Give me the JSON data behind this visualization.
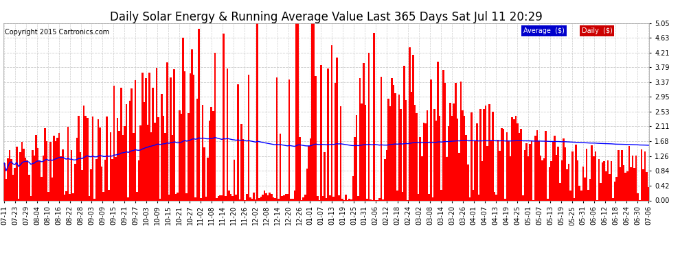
{
  "title": "Daily Solar Energy & Running Average Value Last 365 Days Sat Jul 11 20:29",
  "copyright": "Copyright 2015 Cartronics.com",
  "bar_color": "#ff0000",
  "avg_color": "#0000ff",
  "bg_color": "#ffffff",
  "grid_color": "#cccccc",
  "ylabel_right": [
    "0.00",
    "0.42",
    "0.84",
    "1.26",
    "1.68",
    "2.11",
    "2.53",
    "2.95",
    "3.37",
    "3.79",
    "4.21",
    "4.63",
    "5.05"
  ],
  "ylim": [
    0,
    5.05
  ],
  "legend_labels": [
    "Average  ($)",
    "Daily  ($)"
  ],
  "legend_colors_bg": [
    "#0000cc",
    "#cc0000"
  ],
  "x_labels": [
    "07-11",
    "07-23",
    "07-29",
    "08-04",
    "08-10",
    "08-16",
    "08-22",
    "08-28",
    "09-03",
    "09-09",
    "09-15",
    "09-21",
    "09-27",
    "10-03",
    "10-09",
    "10-15",
    "10-21",
    "10-27",
    "11-02",
    "11-08",
    "11-14",
    "11-20",
    "11-26",
    "12-02",
    "12-08",
    "12-14",
    "12-20",
    "12-26",
    "01-01",
    "01-07",
    "01-13",
    "01-19",
    "01-25",
    "01-31",
    "02-06",
    "02-12",
    "02-18",
    "02-24",
    "03-02",
    "03-08",
    "03-14",
    "03-20",
    "03-26",
    "04-01",
    "04-07",
    "04-13",
    "04-19",
    "04-25",
    "05-01",
    "05-07",
    "05-13",
    "05-19",
    "05-25",
    "05-31",
    "06-06",
    "06-12",
    "06-18",
    "06-24",
    "06-30",
    "07-06"
  ],
  "title_fontsize": 12,
  "tick_fontsize": 7,
  "copyright_fontsize": 7
}
